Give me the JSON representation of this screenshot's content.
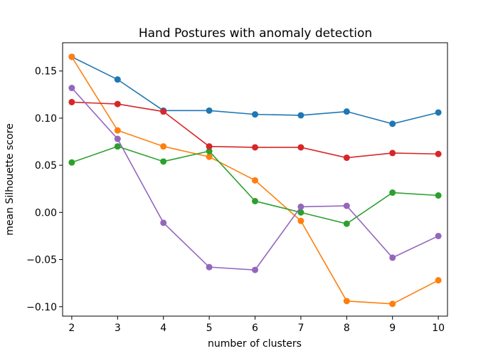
{
  "chart_data": {
    "type": "line",
    "title": "Hand Postures with anomaly detection",
    "xlabel": "number of clusters",
    "ylabel": "mean Silhouette score",
    "x": [
      2,
      3,
      4,
      5,
      6,
      7,
      8,
      9,
      10
    ],
    "xlim": [
      1.8,
      10.2
    ],
    "ylim": [
      -0.11,
      0.18
    ],
    "xticks": [
      2,
      3,
      4,
      5,
      6,
      7,
      8,
      9,
      10
    ],
    "yticks": [
      -0.1,
      -0.05,
      0.0,
      0.05,
      0.1,
      0.15
    ],
    "ytick_labels": [
      "−0.10",
      "−0.05",
      "0.00",
      "0.05",
      "0.10",
      "0.15"
    ],
    "grid": false,
    "legend": "none",
    "series": [
      {
        "color": "#1f77b4",
        "values": [
          0.165,
          0.141,
          0.108,
          0.108,
          0.104,
          0.103,
          0.107,
          0.094,
          0.106
        ]
      },
      {
        "color": "#ff7f0e",
        "values": [
          0.165,
          0.087,
          0.07,
          0.059,
          0.034,
          -0.009,
          -0.094,
          -0.097,
          -0.072
        ]
      },
      {
        "color": "#2ca02c",
        "values": [
          0.053,
          0.07,
          0.054,
          0.065,
          0.012,
          0.0,
          -0.012,
          0.021,
          0.018
        ]
      },
      {
        "color": "#d62728",
        "values": [
          0.117,
          0.115,
          0.107,
          0.07,
          0.069,
          0.069,
          0.058,
          0.063,
          0.062
        ]
      },
      {
        "color": "#9467bd",
        "values": [
          0.132,
          0.078,
          -0.011,
          -0.058,
          -0.061,
          0.006,
          0.007,
          -0.048,
          -0.025
        ]
      }
    ]
  }
}
